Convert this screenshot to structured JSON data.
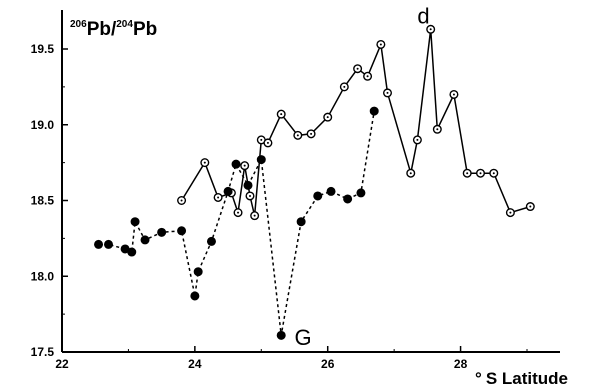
{
  "chart_data": {
    "type": "line",
    "ylabel": {
      "sup1": "206",
      "part1": "Pb/",
      "sup2": "204",
      "part2": "Pb"
    },
    "xlabel": {
      "degree": "°",
      "text": "S Latitude"
    },
    "xlim": [
      22,
      29.5
    ],
    "ylim": [
      17.5,
      19.75
    ],
    "x_ticks": [
      22,
      24,
      26,
      28
    ],
    "x_tick_labels": [
      "22",
      "24",
      "26",
      "28"
    ],
    "y_ticks": [
      17.5,
      18.0,
      18.5,
      19.0,
      19.5
    ],
    "y_tick_labels": [
      "17.5",
      "18.0",
      "18.5",
      "19.0",
      "19.5"
    ],
    "grid": false,
    "series": [
      {
        "marker": "open-circle",
        "line_style": "solid",
        "x": [
          23.8,
          24.15,
          24.35,
          24.55,
          24.65,
          24.75,
          24.83,
          24.9,
          25.0,
          25.1,
          25.3,
          25.55,
          25.75,
          26.0,
          26.25,
          26.45,
          26.6,
          26.8,
          26.9,
          27.25,
          27.35,
          27.55,
          27.65,
          27.9,
          28.1,
          28.3,
          28.5,
          28.75,
          29.05
        ],
        "y": [
          18.5,
          18.75,
          18.52,
          18.55,
          18.42,
          18.73,
          18.53,
          18.4,
          18.9,
          18.88,
          19.07,
          18.93,
          18.94,
          19.05,
          19.25,
          19.37,
          19.32,
          19.53,
          19.21,
          18.68,
          18.9,
          19.63,
          18.97,
          19.2,
          18.68,
          18.68,
          18.68,
          18.42,
          18.46
        ]
      },
      {
        "marker": "filled-circle",
        "line_style": "dashed",
        "x": [
          22.55,
          22.7,
          22.95,
          23.05,
          23.1,
          23.25,
          23.5,
          23.8,
          24.0,
          24.05,
          24.25,
          24.5,
          24.62,
          24.8,
          25.0,
          25.3,
          25.6,
          25.85,
          26.05,
          26.3,
          26.5,
          26.7
        ],
        "y": [
          18.21,
          18.21,
          18.18,
          18.16,
          18.36,
          18.24,
          18.29,
          18.3,
          17.87,
          18.03,
          18.23,
          18.56,
          18.74,
          18.6,
          18.77,
          17.61,
          18.36,
          18.53,
          18.56,
          18.51,
          18.55,
          19.09
        ]
      }
    ],
    "annotations": [
      {
        "text": "d",
        "x": 27.35,
        "y": 19.72
      },
      {
        "text": "G",
        "x": 25.5,
        "y": 17.6
      }
    ]
  }
}
